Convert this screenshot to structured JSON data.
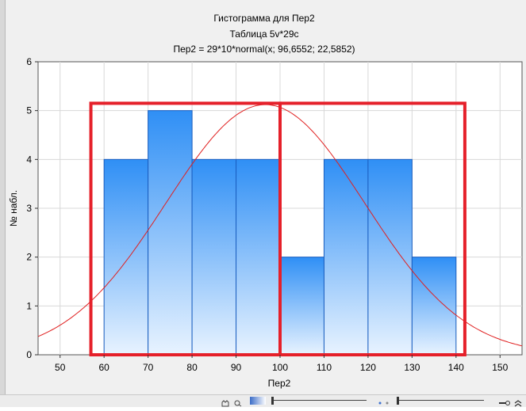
{
  "chart_data": {
    "type": "bar",
    "title_lines": [
      "Гистограмма для Пер2",
      "Таблица 5v*29c",
      "Пер2 = 29*10*normal(x; 96,6552; 22,5852)"
    ],
    "xlabel": "Пер2",
    "ylabel": "№ набл.",
    "xlim": [
      45,
      155
    ],
    "ylim": [
      0,
      6
    ],
    "x_ticks": [
      50,
      60,
      70,
      80,
      90,
      100,
      110,
      120,
      130,
      140,
      150
    ],
    "y_ticks": [
      0,
      1,
      2,
      3,
      4,
      5,
      6
    ],
    "bins": [
      {
        "from": 60,
        "to": 70,
        "count": 4
      },
      {
        "from": 70,
        "to": 80,
        "count": 5
      },
      {
        "from": 80,
        "to": 90,
        "count": 4
      },
      {
        "from": 90,
        "to": 100,
        "count": 4
      },
      {
        "from": 100,
        "to": 110,
        "count": 2
      },
      {
        "from": 110,
        "to": 120,
        "count": 4
      },
      {
        "from": 120,
        "to": 130,
        "count": 4
      },
      {
        "from": 130,
        "to": 140,
        "count": 2
      }
    ],
    "normal_curve": {
      "n": 29,
      "bin_width": 10,
      "mean": 96.6552,
      "sd": 22.5852
    },
    "highlight_boxes": [
      {
        "x_from": 57,
        "x_to": 100,
        "y_from": 0,
        "y_to": 5.15
      },
      {
        "x_from": 100,
        "x_to": 142,
        "y_from": 0,
        "y_to": 5.15
      }
    ],
    "grid": true,
    "colors": {
      "bar_top": "#2f8ff5",
      "bar_bottom": "#e8f3ff",
      "bar_edge": "#1b5fc0",
      "curve": "#e02020",
      "highlight": "#e5202a"
    }
  }
}
